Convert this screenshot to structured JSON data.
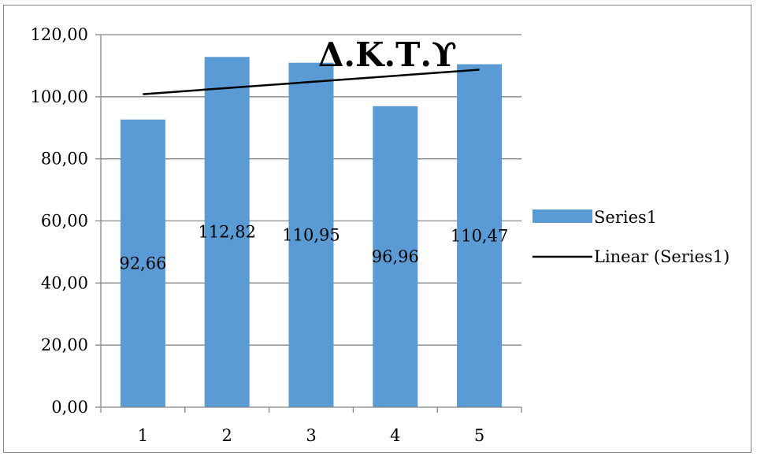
{
  "chart_data": {
    "type": "bar",
    "title": "Δ.Κ.Τ.ϒ",
    "categories": [
      "1",
      "2",
      "3",
      "4",
      "5"
    ],
    "series": [
      {
        "name": "Series1",
        "values": [
          92.66,
          112.82,
          110.95,
          96.96,
          110.47
        ],
        "data_labels": [
          "92,66",
          "112,82",
          "110,95",
          "96,96",
          "110,47"
        ],
        "color": "#5B9BD5"
      }
    ],
    "trendline": {
      "name": "Linear (Series1)",
      "type": "linear",
      "color": "#000000"
    },
    "ylim": [
      0,
      120
    ],
    "ytick_values": [
      0,
      20,
      40,
      60,
      80,
      100,
      120
    ],
    "ytick_labels": [
      "0,00",
      "20,00",
      "40,00",
      "60,00",
      "80,00",
      "100,00",
      "120,00"
    ],
    "grid": true,
    "legend_position": "right",
    "xlabel": "",
    "ylabel": ""
  }
}
